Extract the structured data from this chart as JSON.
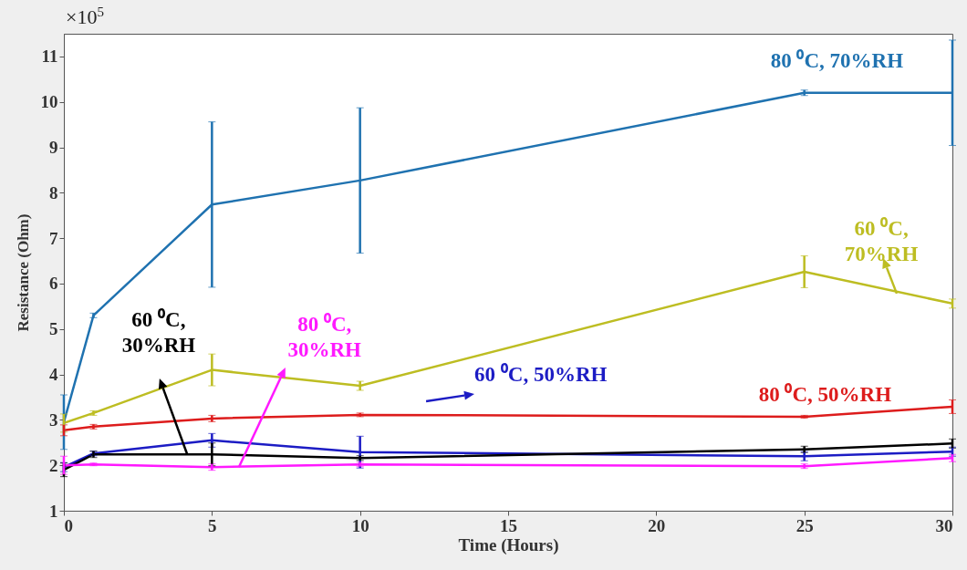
{
  "chart_data": {
    "type": "line",
    "xlabel": "Time (Hours)",
    "ylabel": "Resistance (Ohm)",
    "annotations": [
      "×10$^{5}$"
    ],
    "x": [
      0,
      1,
      5,
      10,
      25,
      30
    ],
    "xlim": [
      0,
      30
    ],
    "xticks": [
      0,
      5,
      10,
      15,
      20,
      25,
      30
    ],
    "ylim": [
      1,
      11.5
    ],
    "yticks": [
      1,
      2,
      3,
      4,
      5,
      6,
      7,
      8,
      9,
      10,
      11
    ],
    "grid": false,
    "legend": false,
    "marker": "none",
    "line_style": "solid",
    "series": [
      {
        "name": "80 ⁰C, 70%RH",
        "color": "#1f72b0",
        "values": [
          2.95,
          5.3,
          7.74,
          8.27,
          10.2,
          10.2
        ],
        "errors": [
          0.6,
          0.05,
          1.82,
          1.6,
          0.06,
          1.16
        ]
      },
      {
        "name": "60 ⁰C, 70%RH",
        "color": "#bdbd22",
        "values": [
          2.93,
          3.15,
          4.1,
          3.75,
          6.26,
          5.56
        ],
        "errors": [
          0.2,
          0.05,
          0.35,
          0.1,
          0.35,
          0.1
        ]
      },
      {
        "name": "80 ⁰C, 50%RH",
        "color": "#dd1c1c",
        "values": [
          2.77,
          2.85,
          3.03,
          3.11,
          3.07,
          3.29
        ],
        "errors": [
          0.12,
          0.05,
          0.07,
          0.04,
          0.03,
          0.15
        ]
      },
      {
        "name": "60 ⁰C, 50%RH",
        "color": "#1c1cc4",
        "values": [
          1.96,
          2.26,
          2.55,
          2.29,
          2.2,
          2.3
        ],
        "errors": [
          0.1,
          0.05,
          0.15,
          0.35,
          0.1,
          0.1
        ]
      },
      {
        "name": "60 ⁰C, 30%RH",
        "color": "#000000",
        "values": [
          1.9,
          2.24,
          2.24,
          2.16,
          2.35,
          2.48
        ],
        "errors": [
          0.15,
          0.07,
          0.25,
          0.05,
          0.07,
          0.1
        ]
      },
      {
        "name": "80 ⁰C, 30%RH",
        "color": "#ff19ff",
        "values": [
          2.0,
          2.02,
          1.96,
          2.02,
          1.98,
          2.16
        ],
        "errors": [
          0.2,
          0.03,
          0.07,
          0.05,
          0.05,
          0.08
        ]
      }
    ]
  }
}
